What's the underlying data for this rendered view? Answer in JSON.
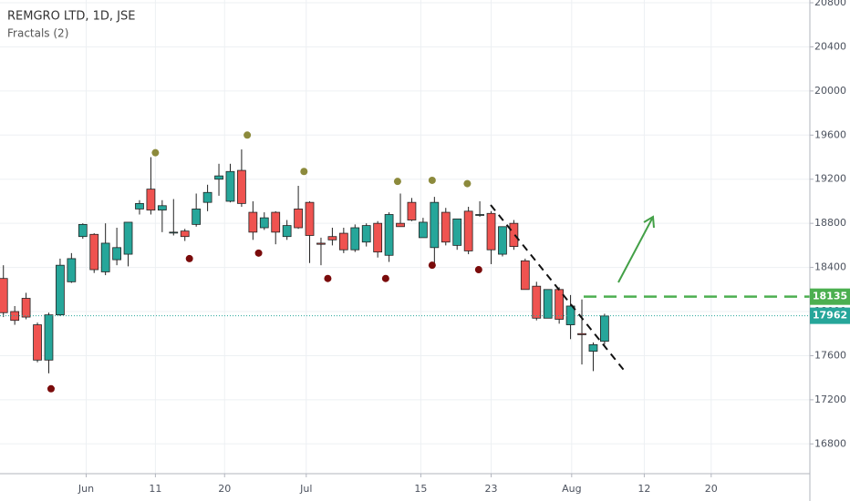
{
  "chart_data": {
    "type": "candlestick",
    "title": "REMGRO LTD, 1D, JSE",
    "subtitle": "Fractals (2)",
    "up_color": "#26a69a",
    "down_color": "#ef5350",
    "open": [
      18300,
      18000,
      18120,
      17880,
      17560,
      17970,
      18270,
      18680,
      18700,
      18360,
      18470,
      18520,
      18930,
      19110,
      18920,
      18720,
      18730,
      18790,
      18990,
      19200,
      19000,
      19280,
      18900,
      18760,
      18900,
      18680,
      18930,
      18990,
      18620,
      18680,
      18710,
      18560,
      18630,
      18800,
      18510,
      18800,
      18990,
      18670,
      18580,
      18900,
      18600,
      18910,
      18880,
      18890,
      18520,
      18800,
      18460,
      18230,
      17940,
      18200,
      17880,
      17800,
      17640,
      17730
    ],
    "high": [
      18420,
      18050,
      18170,
      17900,
      17990,
      18480,
      18530,
      18800,
      18710,
      18800,
      18760,
      18780,
      19010,
      19400,
      19010,
      19020,
      18750,
      19070,
      19150,
      19340,
      19340,
      19470,
      19000,
      18900,
      18910,
      18830,
      19140,
      19000,
      18670,
      18760,
      18760,
      18790,
      18800,
      18820,
      18900,
      19070,
      19030,
      18850,
      19040,
      18940,
      18830,
      18950,
      19000,
      18910,
      18770,
      18830,
      18480,
      18270,
      18200,
      18220,
      18150,
      18110,
      17720,
      17980
    ],
    "low": [
      17950,
      17880,
      17930,
      17540,
      17440,
      17960,
      18260,
      18660,
      18350,
      18330,
      18420,
      18410,
      18880,
      18880,
      18720,
      18690,
      18640,
      18770,
      18910,
      19050,
      18990,
      18950,
      18650,
      18740,
      18610,
      18650,
      18750,
      18440,
      18420,
      18600,
      18530,
      18540,
      18590,
      18490,
      18450,
      18770,
      18820,
      18670,
      18400,
      18600,
      18560,
      18520,
      18860,
      18430,
      18500,
      18560,
      18200,
      17920,
      17940,
      17890,
      17750,
      17520,
      17460,
      17700
    ],
    "close": [
      17990,
      17920,
      17950,
      17560,
      17970,
      18420,
      18480,
      18790,
      18380,
      18620,
      18580,
      18810,
      18980,
      18920,
      18960,
      18720,
      18680,
      18930,
      19080,
      19230,
      19270,
      18980,
      18720,
      18850,
      18720,
      18780,
      18760,
      18690,
      18610,
      18650,
      18560,
      18760,
      18780,
      18540,
      18880,
      18770,
      18830,
      18810,
      18990,
      18630,
      18840,
      18550,
      18880,
      18560,
      18770,
      18590,
      18200,
      17940,
      18200,
      17930,
      18050,
      17790,
      17700,
      17960
    ],
    "fractals_up": {
      "color": "#8c8a3c",
      "x": [
        13.4,
        21.5,
        26.5,
        34.75,
        37.8,
        40.9
      ],
      "values": [
        19440,
        19600,
        19270,
        19180,
        19190,
        19160
      ]
    },
    "fractals_down": {
      "color": "#7a0b0b",
      "x": [
        4.2,
        16.4,
        22.5,
        28.6,
        33.7,
        37.8,
        41.9
      ],
      "values": [
        17300,
        18480,
        18530,
        18300,
        18300,
        18420,
        18380
      ]
    },
    "levels": [
      {
        "value": 18135,
        "color": "#4caf50",
        "style": "dashed"
      },
      {
        "value": 17962,
        "color": "#26a69a",
        "style": "dotted"
      }
    ],
    "xlim": [
      -0.3,
      71.1
    ],
    "ylim": [
      16530,
      20825
    ],
    "yticks": [
      16800,
      17200,
      17600,
      18000,
      18400,
      18800,
      19200,
      19600,
      20000,
      20400,
      20800
    ],
    "xticks": [
      {
        "value": 7.3,
        "label": "Jun"
      },
      {
        "value": 13.4,
        "label": "11"
      },
      {
        "value": 19.5,
        "label": "20"
      },
      {
        "value": 26.7,
        "label": "Jul"
      },
      {
        "value": 36.8,
        "label": "15"
      },
      {
        "value": 43,
        "label": "23"
      },
      {
        "value": 50.1,
        "label": "Aug"
      },
      {
        "value": 56.5,
        "label": "12"
      },
      {
        "value": 62.4,
        "label": "20"
      }
    ],
    "grid": true
  }
}
